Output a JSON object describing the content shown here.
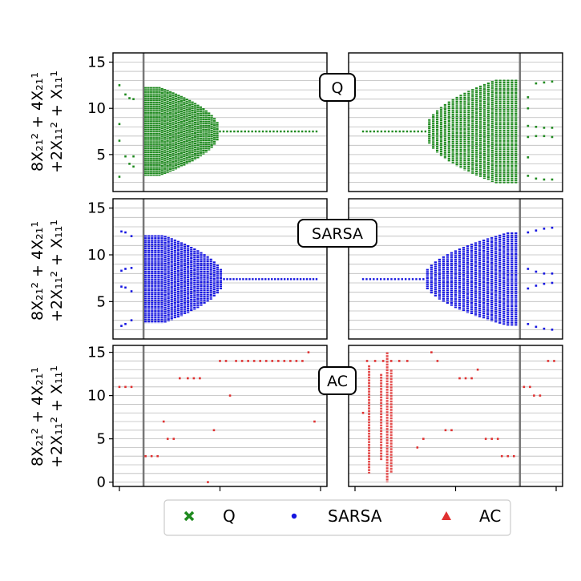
{
  "chart_data": {
    "type": "scatter",
    "ylabel_line1": "8X₂₁² + 4X₂₁¹",
    "ylabel_line2": "+2X₁₁² + X₁₁¹",
    "colors": {
      "Q": "#1f8a1f",
      "SARSA": "#1515e0",
      "AC": "#e03030",
      "vline": "#777777",
      "grid": "#bbbbbb"
    },
    "legend": [
      {
        "name": "Q",
        "marker": "x"
      },
      {
        "name": "SARSA",
        "marker": "dot"
      },
      {
        "name": "AC",
        "marker": "triangle"
      }
    ],
    "legend_position": "bottom",
    "grid": true,
    "rows": [
      {
        "algo": "Q",
        "label": "Q",
        "yticks": [
          "5",
          "10",
          "15"
        ],
        "ylim": [
          1,
          16
        ],
        "left": {
          "scattered": [
            [
              0,
              12.5
            ],
            [
              0,
              8.3
            ],
            [
              0,
              6.5
            ],
            [
              0,
              2.6
            ],
            [
              0.03,
              11.5
            ],
            [
              0.03,
              4.8
            ],
            [
              0.05,
              11.1
            ],
            [
              0.05,
              4.0
            ],
            [
              0.07,
              11.0
            ],
            [
              0.07,
              4.8
            ],
            [
              0.07,
              3.7
            ]
          ],
          "envelope": {
            "x_start": 0.13,
            "x_end": 0.5,
            "n": 28,
            "center": 7.5,
            "max_half": 4.8,
            "peak_at": 0.2
          },
          "tail": {
            "x_start": 0.5,
            "x_end": 0.98,
            "n": 28,
            "y": 7.5
          }
        },
        "right": {
          "scattered": [
            [
              0.86,
              11.2
            ],
            [
              0.86,
              10.0
            ],
            [
              0.86,
              8.1
            ],
            [
              0.86,
              6.9
            ],
            [
              0.86,
              4.7
            ],
            [
              0.86,
              2.7
            ],
            [
              0.9,
              12.7
            ],
            [
              0.94,
              12.8
            ],
            [
              0.98,
              12.9
            ],
            [
              0.9,
              8.0
            ],
            [
              0.94,
              7.9
            ],
            [
              0.98,
              7.9
            ],
            [
              0.9,
              7.0
            ],
            [
              0.94,
              7.0
            ],
            [
              0.98,
              6.9
            ],
            [
              0.9,
              2.4
            ],
            [
              0.94,
              2.3
            ],
            [
              0.98,
              2.3
            ]
          ],
          "envelope": {
            "x_start": 0.35,
            "x_end": 0.8,
            "n": 24,
            "center": 7.5,
            "max_half": 5.6,
            "peak_at": 0.7
          },
          "tail": {
            "x_start": 0.04,
            "x_end": 0.35,
            "n": 18,
            "y": 7.5
          },
          "vline_x": 0.82
        }
      },
      {
        "algo": "SARSA",
        "label": "SARSA",
        "yticks": [
          "5",
          "10",
          "15"
        ],
        "ylim": [
          1,
          16
        ],
        "left": {
          "scattered": [
            [
              0.01,
              12.5
            ],
            [
              0.03,
              12.4
            ],
            [
              0.06,
              12.0
            ],
            [
              0.01,
              8.3
            ],
            [
              0.03,
              8.5
            ],
            [
              0.06,
              8.6
            ],
            [
              0.01,
              6.6
            ],
            [
              0.03,
              6.5
            ],
            [
              0.06,
              6.1
            ],
            [
              0.01,
              2.4
            ],
            [
              0.03,
              2.6
            ],
            [
              0.06,
              3.0
            ]
          ],
          "envelope": {
            "x_start": 0.13,
            "x_end": 0.52,
            "n": 25,
            "center": 7.4,
            "max_half": 4.7,
            "peak_at": 0.22
          },
          "tail": {
            "x_start": 0.52,
            "x_end": 0.98,
            "n": 30,
            "y": 7.4
          }
        },
        "right": {
          "scattered": [
            [
              0.86,
              12.4
            ],
            [
              0.9,
              12.6
            ],
            [
              0.94,
              12.8
            ],
            [
              0.98,
              12.9
            ],
            [
              0.86,
              8.5
            ],
            [
              0.9,
              8.2
            ],
            [
              0.94,
              8.0
            ],
            [
              0.98,
              8.0
            ],
            [
              0.86,
              6.4
            ],
            [
              0.9,
              6.7
            ],
            [
              0.94,
              6.9
            ],
            [
              0.98,
              7.0
            ],
            [
              0.86,
              2.6
            ],
            [
              0.9,
              2.3
            ],
            [
              0.94,
              2.1
            ],
            [
              0.98,
              2.0
            ]
          ],
          "envelope": {
            "x_start": 0.34,
            "x_end": 0.8,
            "n": 24,
            "center": 7.4,
            "max_half": 5.0,
            "peak_at": 0.76
          },
          "tail": {
            "x_start": 0.04,
            "x_end": 0.34,
            "n": 18,
            "y": 7.4
          }
        }
      },
      {
        "algo": "AC",
        "label": "AC",
        "yticks": [
          "0",
          "5",
          "10",
          "15"
        ],
        "ylim": [
          -0.5,
          15.8
        ],
        "left": {
          "scattered": [
            [
              0.0,
              11
            ],
            [
              0.03,
              11
            ],
            [
              0.06,
              11
            ],
            [
              0.13,
              3
            ],
            [
              0.16,
              3
            ],
            [
              0.19,
              3
            ],
            [
              0.22,
              7
            ],
            [
              0.24,
              5
            ],
            [
              0.27,
              5
            ],
            [
              0.3,
              12
            ],
            [
              0.34,
              12
            ],
            [
              0.37,
              12
            ],
            [
              0.4,
              12
            ],
            [
              0.44,
              0
            ],
            [
              0.47,
              6
            ],
            [
              0.5,
              14
            ],
            [
              0.53,
              14
            ],
            [
              0.55,
              10
            ],
            [
              0.58,
              14
            ],
            [
              0.61,
              14
            ],
            [
              0.64,
              14
            ],
            [
              0.67,
              14
            ],
            [
              0.7,
              14
            ],
            [
              0.73,
              14
            ],
            [
              0.76,
              14
            ],
            [
              0.79,
              14
            ],
            [
              0.82,
              14
            ],
            [
              0.85,
              14
            ],
            [
              0.88,
              14
            ],
            [
              0.91,
              14
            ],
            [
              0.94,
              15
            ],
            [
              0.97,
              7
            ]
          ],
          "columns": []
        },
        "right": {
          "scattered": [
            [
              0.04,
              8
            ],
            [
              0.06,
              14
            ],
            [
              0.1,
              14
            ],
            [
              0.14,
              14
            ],
            [
              0.18,
              14
            ],
            [
              0.22,
              14
            ],
            [
              0.26,
              14
            ],
            [
              0.31,
              4
            ],
            [
              0.34,
              5
            ],
            [
              0.38,
              15
            ],
            [
              0.41,
              14
            ],
            [
              0.45,
              6
            ],
            [
              0.48,
              6
            ],
            [
              0.52,
              12
            ],
            [
              0.55,
              12
            ],
            [
              0.58,
              12
            ],
            [
              0.61,
              13
            ],
            [
              0.65,
              5
            ],
            [
              0.68,
              5
            ],
            [
              0.71,
              5
            ],
            [
              0.73,
              3
            ],
            [
              0.76,
              3
            ],
            [
              0.79,
              3
            ],
            [
              0.84,
              11
            ],
            [
              0.87,
              11
            ],
            [
              0.89,
              10
            ],
            [
              0.92,
              10
            ],
            [
              0.96,
              14
            ],
            [
              0.99,
              14
            ]
          ],
          "columns": [
            {
              "x": 0.07,
              "ymin": 1,
              "ymax": 13.5
            },
            {
              "x": 0.13,
              "ymin": 2.5,
              "ymax": 12.5
            },
            {
              "x": 0.16,
              "ymin": 0,
              "ymax": 15
            },
            {
              "x": 0.18,
              "ymin": 1,
              "ymax": 13
            }
          ]
        }
      }
    ],
    "shared_vline_left_x": 0.12
  }
}
